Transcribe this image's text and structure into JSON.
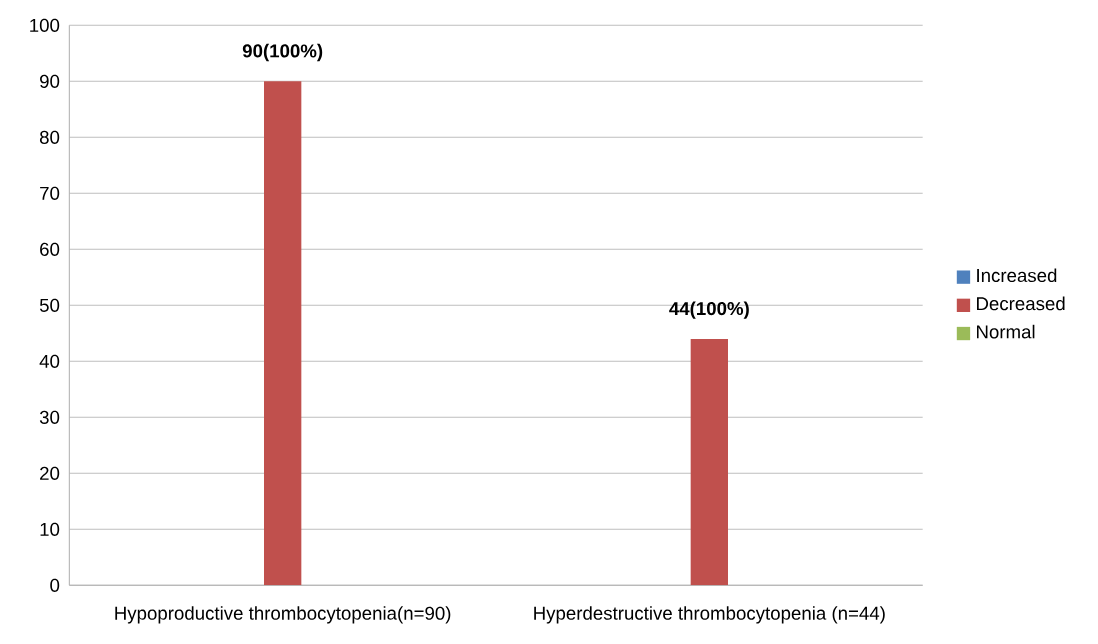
{
  "chart_data": {
    "type": "bar",
    "categories": [
      "Hypoproductive thrombocytopenia(n=90)",
      "Hyperdestructive thrombocytopenia (n=44)"
    ],
    "series": [
      {
        "name": "Increased",
        "color": "#4f81bd",
        "values": [
          0,
          0
        ]
      },
      {
        "name": "Decreased",
        "color": "#c0504d",
        "values": [
          90,
          44
        ],
        "value_labels": [
          "90(100%)",
          "44(100%)"
        ]
      },
      {
        "name": "Normal",
        "color": "#9bbb59",
        "values": [
          0,
          0
        ]
      }
    ],
    "ylim": [
      0,
      100
    ],
    "yticks": [
      0,
      10,
      20,
      30,
      40,
      50,
      60,
      70,
      80,
      90,
      100
    ],
    "grid": "y",
    "legend": "right"
  }
}
